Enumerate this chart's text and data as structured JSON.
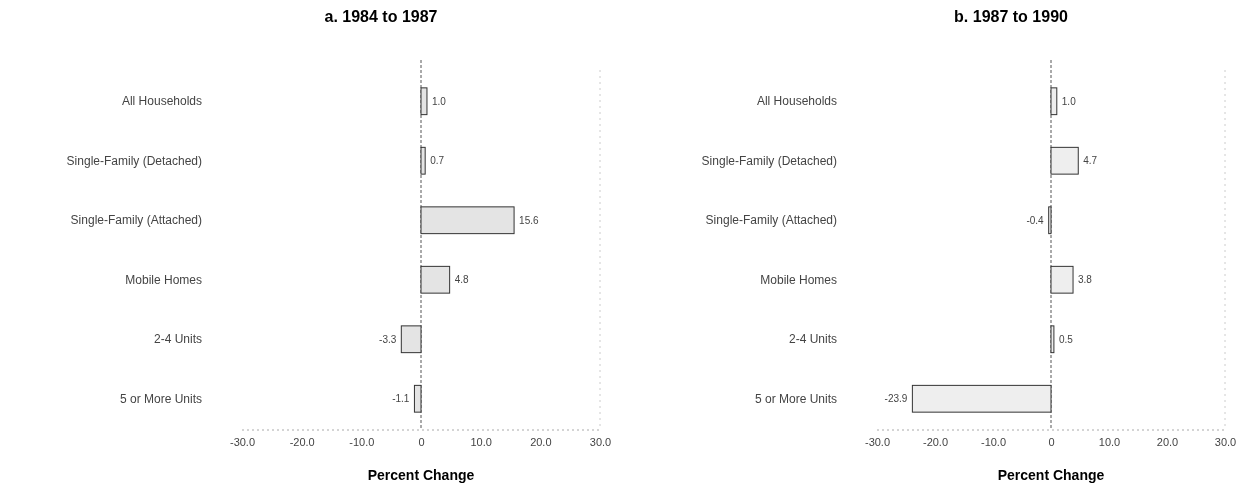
{
  "chart_data": [
    {
      "type": "bar",
      "orientation": "horizontal",
      "title": "a. 1984 to 1987",
      "xlabel": "Percent Change",
      "categories": [
        "All Households",
        "Single-Family (Detached)",
        "Single-Family (Attached)",
        "Mobile Homes",
        "2-4 Units",
        "5 or More Units"
      ],
      "values": [
        1.0,
        0.7,
        15.6,
        4.8,
        -3.3,
        -1.1
      ],
      "value_labels": [
        "1.0",
        "0.7",
        "15.6",
        "4.8",
        "-3.3",
        "-1.1"
      ],
      "color": "#e4e4e4",
      "xlim": [
        -30,
        30
      ],
      "xticks": [
        {
          "value": -30,
          "label": "-30.0"
        },
        {
          "value": -20,
          "label": "-20.0"
        },
        {
          "value": -10,
          "label": "-10.0"
        },
        0,
        {
          "value": 10,
          "label": "10.0"
        },
        {
          "value": 20,
          "label": "20.0"
        },
        {
          "value": 30,
          "label": "30.0"
        }
      ]
    },
    {
      "type": "bar",
      "orientation": "horizontal",
      "title": "b. 1987 to 1990",
      "xlabel": "Percent Change",
      "categories": [
        "All Households",
        "Single-Family (Detached)",
        "Single-Family (Attached)",
        "Mobile Homes",
        "2-4 Units",
        "5 or More Units"
      ],
      "values": [
        1.0,
        4.7,
        -0.4,
        3.8,
        0.5,
        -23.9
      ],
      "value_labels": [
        "1.0",
        "4.7",
        "-0.4",
        "3.8",
        "0.5",
        "-23.9"
      ],
      "color": "#eeeeee",
      "xlim": [
        -30,
        30
      ],
      "xticks": [
        {
          "value": -30,
          "label": "-30.0"
        },
        {
          "value": -20,
          "label": "-20.0"
        },
        {
          "value": -10,
          "label": "-10.0"
        },
        0,
        {
          "value": 10,
          "label": "10.0"
        },
        {
          "value": 20,
          "label": "20.0"
        },
        {
          "value": 30,
          "label": "30.0"
        }
      ]
    }
  ]
}
